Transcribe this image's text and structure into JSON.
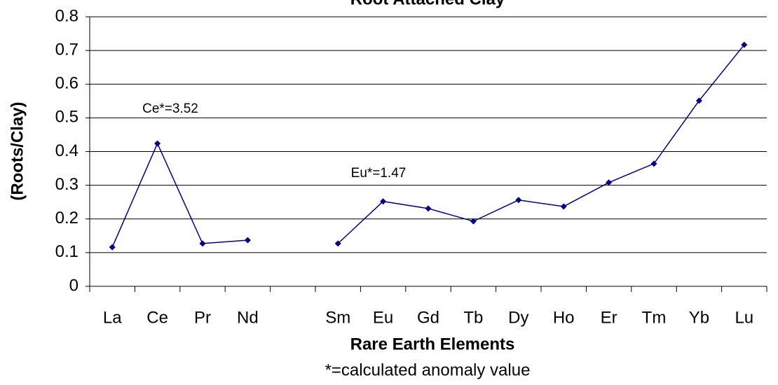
{
  "chart_data": {
    "type": "line",
    "title": "Root Attached Clay",
    "x_label": "Rare Earth Elements",
    "y_label": "(Roots/Clay)",
    "footnote": "*=calculated anomaly value",
    "annotations": [
      "Ce*=3.52",
      "Eu*=1.47"
    ],
    "categories": [
      "La",
      "Ce",
      "Pr",
      "Nd",
      null,
      "Sm",
      "Eu",
      "Gd",
      "Tb",
      "Dy",
      "Ho",
      "Er",
      "Tm",
      "Yb",
      "Lu"
    ],
    "values": [
      0.116,
      0.424,
      0.127,
      0.137,
      null,
      0.127,
      0.252,
      0.231,
      0.193,
      0.256,
      0.237,
      0.308,
      0.364,
      0.551,
      0.717
    ],
    "color": "#000080",
    "ylim": [
      0,
      0.8
    ],
    "yticks": [
      0,
      0.1,
      0.2,
      0.3,
      0.4,
      0.5,
      0.6,
      0.7,
      0.8
    ],
    "grid": true
  }
}
